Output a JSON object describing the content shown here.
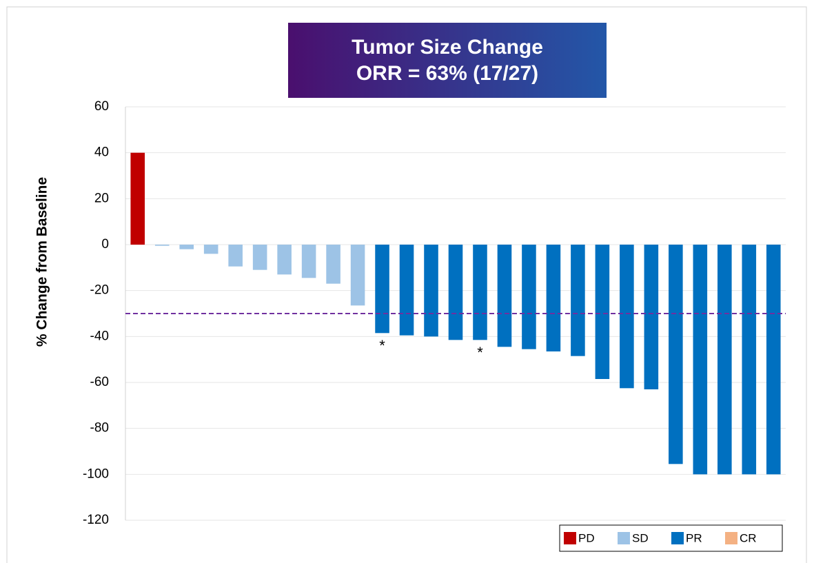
{
  "chart_data": {
    "type": "bar",
    "title": "Tumor Size Change",
    "subtitle": "ORR = 63% (17/27)",
    "y_label": "% Change from Baseline",
    "categories": [
      null,
      null,
      null,
      null,
      null,
      null,
      null,
      null,
      null,
      null,
      null,
      null,
      null,
      null,
      null,
      null,
      null,
      null,
      null,
      null,
      null,
      null,
      null,
      null,
      null,
      null,
      null
    ],
    "series": [
      {
        "name": "PD",
        "color": "#c00000",
        "values": [
          40,
          null,
          null,
          null,
          null,
          null,
          null,
          null,
          null,
          null,
          null,
          null,
          null,
          null,
          null,
          null,
          null,
          null,
          null,
          null,
          null,
          null,
          null,
          null,
          null,
          null,
          null
        ]
      },
      {
        "name": "SD",
        "color": "#9dc3e6",
        "values": [
          null,
          -0.5,
          -2,
          -4,
          -9.5,
          -11,
          -13,
          -14.5,
          -17,
          -26.5,
          null,
          null,
          null,
          null,
          null,
          null,
          null,
          null,
          null,
          null,
          null,
          null,
          null,
          null,
          null,
          null,
          null
        ]
      },
      {
        "name": "PR",
        "color": "#0070c0",
        "values": [
          null,
          null,
          null,
          null,
          null,
          null,
          null,
          null,
          null,
          null,
          -38.5,
          -39.5,
          -40,
          -41.5,
          -41.5,
          -44.5,
          -45.5,
          -46.5,
          -48.5,
          -58.5,
          -62.5,
          -63,
          -95.5,
          -100,
          -100,
          -100,
          -100
        ]
      },
      {
        "name": "CR",
        "color": "#f4b183",
        "values": [
          null,
          null,
          null,
          null,
          null,
          null,
          null,
          null,
          null,
          null,
          null,
          null,
          null,
          null,
          null,
          null,
          null,
          null,
          null,
          null,
          null,
          null,
          null,
          null,
          null,
          null,
          null
        ]
      }
    ],
    "annotations": [
      {
        "text": "*",
        "at": 10
      },
      {
        "text": "*",
        "at": 14
      }
    ],
    "reference_line": {
      "value": -30,
      "color": "#7030a0",
      "style": "dashed"
    },
    "ylim": [
      -120,
      60
    ],
    "yticks": [
      -120,
      -100,
      -80,
      -60,
      -40,
      -20,
      0,
      20,
      40,
      60
    ],
    "grid": true,
    "legend": "bottom-right"
  }
}
